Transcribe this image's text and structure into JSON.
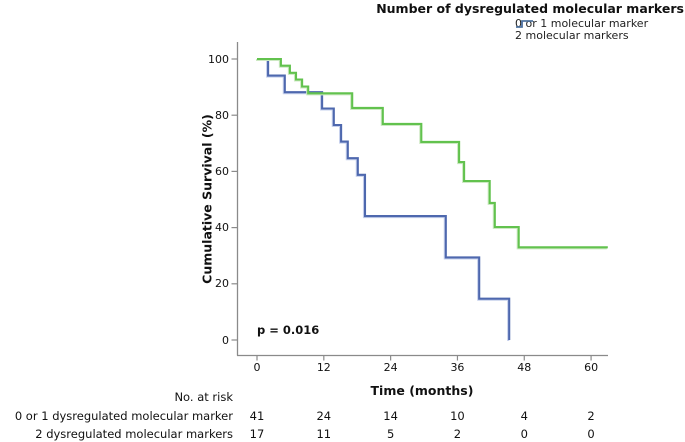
{
  "legend": {
    "title": "Number of dysregulated molecular markers",
    "entries": [
      {
        "label": "0 or 1 molecular marker",
        "color": "#62c24e"
      },
      {
        "label": "2 molecular markers",
        "color": "#4e68ae"
      }
    ]
  },
  "chart_data": {
    "type": "line",
    "subtype": "kaplan-meier-step",
    "title": "Number of dysregulated molecular markers",
    "xlabel": "Time (months)",
    "ylabel": "Cumulative Survival (%)",
    "annotation": "p = 0.016",
    "xlim": [
      0,
      63
    ],
    "ylim": [
      0,
      100
    ],
    "x_ticks": [
      0,
      12,
      24,
      36,
      48,
      60
    ],
    "y_ticks": [
      0,
      20,
      40,
      60,
      80,
      100
    ],
    "grid": false,
    "legend_position": "top-right",
    "series": [
      {
        "name": "0 or 1 molecular marker",
        "color": "#62c24e",
        "halo_class": "halo-green",
        "steps": [
          [
            0,
            100
          ],
          [
            4.3,
            97.6
          ],
          [
            5.9,
            95.1
          ],
          [
            7.0,
            92.7
          ],
          [
            8.1,
            90.2
          ],
          [
            9.2,
            87.8
          ],
          [
            17.1,
            82.6
          ],
          [
            22.6,
            76.9
          ],
          [
            29.5,
            70.5
          ],
          [
            36.3,
            63.3
          ],
          [
            37.2,
            56.6
          ],
          [
            41.8,
            48.8
          ],
          [
            42.7,
            40.2
          ],
          [
            47.0,
            33.0
          ]
        ],
        "extend_to": 63
      },
      {
        "name": "2 molecular markers",
        "color": "#4e68ae",
        "halo_class": "halo-blue",
        "steps": [
          [
            0,
            100
          ],
          [
            2.0,
            94.1
          ],
          [
            5.0,
            88.2
          ],
          [
            11.7,
            82.4
          ],
          [
            13.8,
            76.5
          ],
          [
            15.1,
            70.6
          ],
          [
            16.3,
            64.7
          ],
          [
            18.1,
            58.8
          ],
          [
            19.4,
            44.1
          ],
          [
            33.9,
            29.4
          ],
          [
            39.9,
            14.7
          ],
          [
            45.3,
            0
          ]
        ],
        "extend_to": 45.3
      }
    ]
  },
  "risk_table": {
    "header": "No. at risk",
    "time_points": [
      0,
      12,
      24,
      36,
      48,
      60
    ],
    "rows": [
      {
        "label": "0 or 1 dysregulated molecular marker",
        "counts": [
          41,
          24,
          14,
          10,
          4,
          2
        ]
      },
      {
        "label": "2 dysregulated molecular markers",
        "counts": [
          17,
          11,
          5,
          2,
          0,
          0
        ]
      }
    ]
  },
  "colors": {
    "axis": "#8a8a8a",
    "text": "#111111",
    "green": "#62c24e",
    "blue": "#4e68ae",
    "background": "#ffffff"
  }
}
